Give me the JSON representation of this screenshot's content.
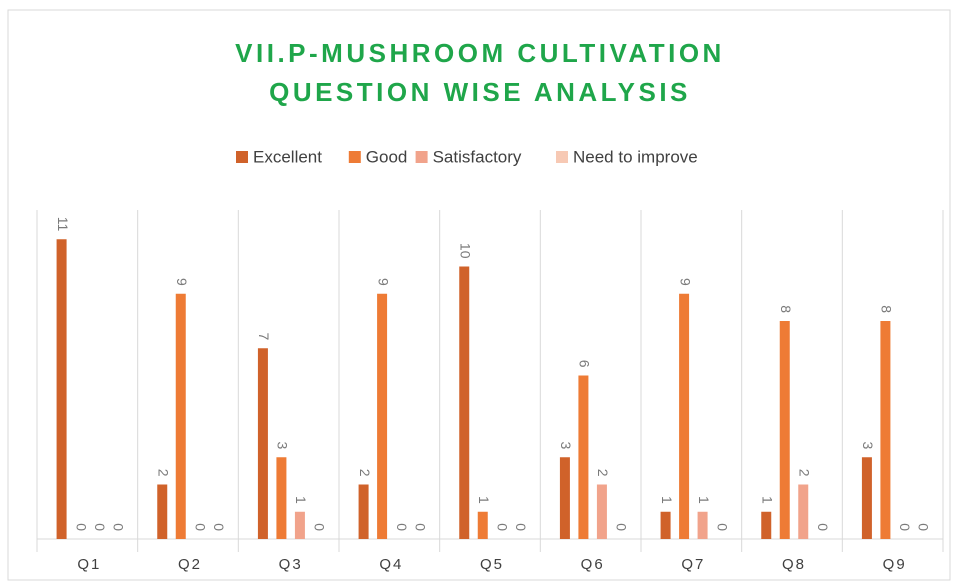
{
  "chart_data": {
    "type": "bar",
    "title_lines": [
      "VII.P-MUSHROOM CULTIVATION",
      "QUESTION WISE ANALYSIS"
    ],
    "categories": [
      "Q1",
      "Q2",
      "Q3",
      "Q4",
      "Q5",
      "Q6",
      "Q7",
      "Q8",
      "Q9"
    ],
    "series": [
      {
        "name": "Excellent",
        "color": "#d0622a",
        "values": [
          11,
          2,
          7,
          2,
          10,
          3,
          1,
          1,
          3
        ]
      },
      {
        "name": "Good",
        "color": "#ee7b35",
        "values": [
          0,
          9,
          3,
          9,
          1,
          6,
          9,
          8,
          8
        ]
      },
      {
        "name": "Satisfactory",
        "color": "#f1a38b",
        "values": [
          0,
          0,
          1,
          0,
          0,
          2,
          1,
          2,
          0
        ]
      },
      {
        "name": "Need to improve",
        "color": "#f7c9b4",
        "values": [
          0,
          0,
          0,
          0,
          0,
          0,
          0,
          0,
          0
        ]
      }
    ],
    "ylim": [
      0,
      12
    ],
    "legend": "top",
    "data_labels": true
  }
}
